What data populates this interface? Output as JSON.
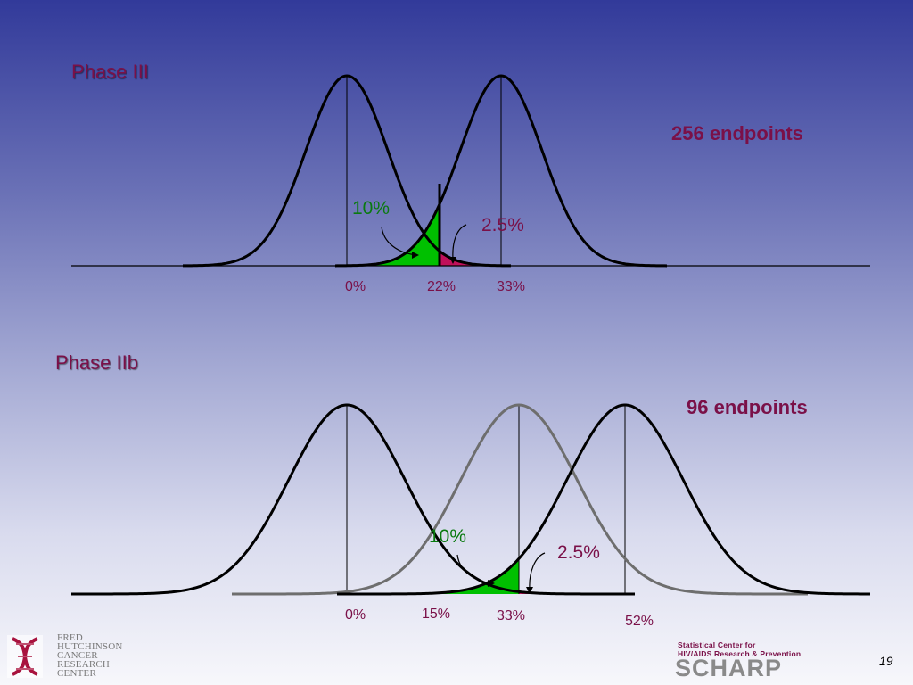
{
  "phase3": {
    "title": "Phase III",
    "endpoints": "256 endpoints",
    "ticks": [
      "0%",
      "22%",
      "33%"
    ],
    "alpha_label": "10%",
    "beta_label": "2.5%"
  },
  "phase2b": {
    "title": "Phase IIb",
    "endpoints": "96 endpoints",
    "ticks": [
      "0%",
      "15%",
      "33%",
      "52%"
    ],
    "alpha_label": "10%",
    "beta_label": "2.5%"
  },
  "logo_fhcrc": {
    "lines": [
      "FRED",
      "HUTCHINSON",
      "CANCER",
      "RESEARCH",
      "CENTER"
    ]
  },
  "logo_scharp": {
    "line1": "Statistical Center for",
    "line2": "HIV/AIDS Research & Prevention",
    "word": "SCHARP"
  },
  "slide_number": "19",
  "colors": {
    "green_fill": "#00c000",
    "magenta_fill": "#c0105a",
    "curve": "#000000",
    "gray_curve": "#6e6e6e",
    "text_maroon": "#7a1048",
    "text_green": "#0a7a10"
  }
}
